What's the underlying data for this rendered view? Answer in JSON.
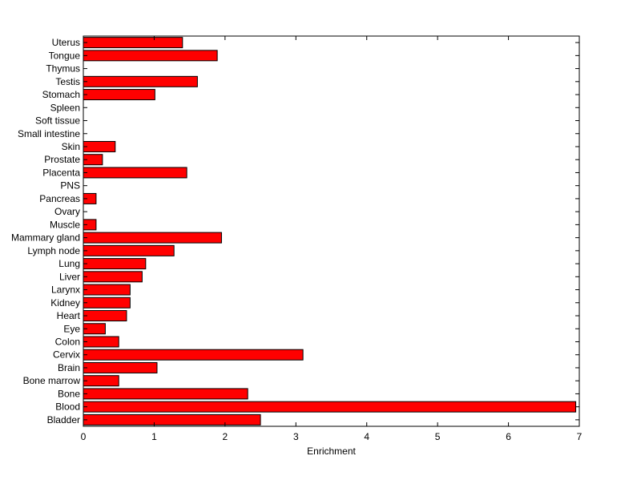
{
  "chart_data": {
    "type": "bar",
    "orientation": "horizontal",
    "title": "",
    "xlabel": "Enrichment",
    "ylabel": "",
    "xlim": [
      0,
      7
    ],
    "xticks": [
      0,
      1,
      2,
      3,
      4,
      5,
      6,
      7
    ],
    "grid": false,
    "legend": "none",
    "bar_color": "#ff0000",
    "categories": [
      "Bladder",
      "Blood",
      "Bone",
      "Bone marrow",
      "Brain",
      "Cervix",
      "Colon",
      "Eye",
      "Heart",
      "Kidney",
      "Larynx",
      "Liver",
      "Lung",
      "Lymph node",
      "Mammary gland",
      "Muscle",
      "Ovary",
      "Pancreas",
      "PNS",
      "Placenta",
      "Prostate",
      "Skin",
      "Small intestine",
      "Soft tissue",
      "Spleen",
      "Stomach",
      "Testis",
      "Thymus",
      "Tongue",
      "Uterus"
    ],
    "values": [
      2.5,
      6.95,
      2.32,
      0.5,
      1.04,
      3.1,
      0.5,
      0.31,
      0.61,
      0.66,
      0.66,
      0.83,
      0.88,
      1.28,
      1.95,
      0.18,
      0,
      0.18,
      0,
      1.46,
      0.27,
      0.45,
      0,
      0,
      0,
      1.01,
      1.61,
      0,
      1.89,
      1.4
    ]
  }
}
